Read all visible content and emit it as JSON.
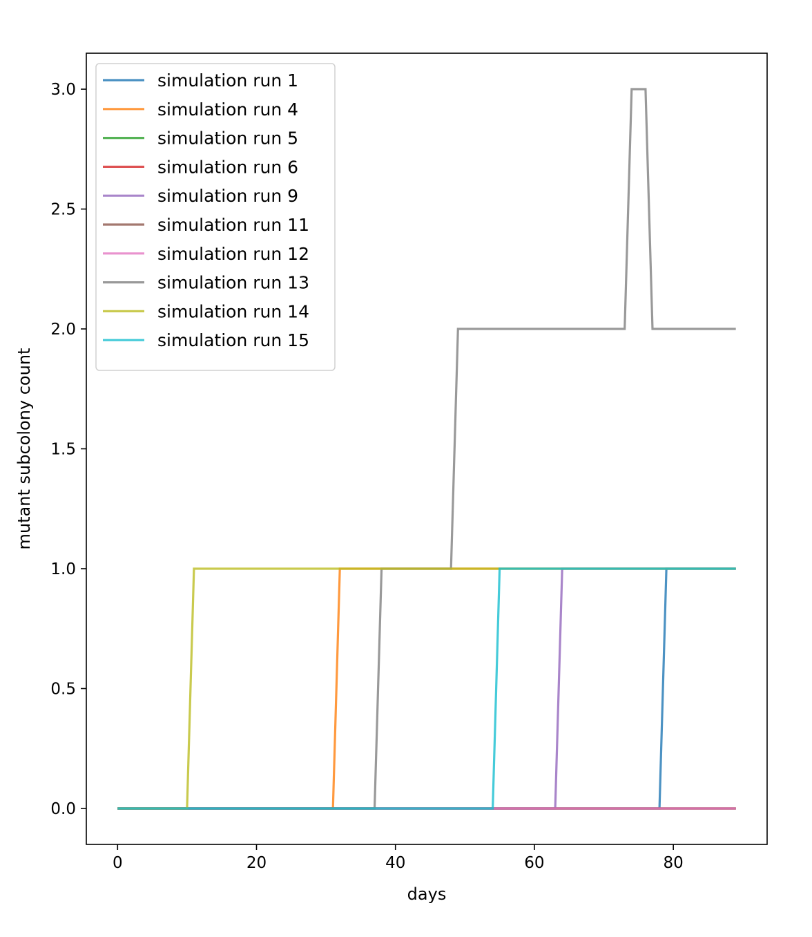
{
  "chart_data": {
    "type": "line",
    "title": "",
    "xlabel": "days",
    "ylabel": "mutant subcolony count",
    "xlim": [
      -4.5,
      93.5
    ],
    "ylim": [
      -0.15,
      3.15
    ],
    "xticks": [
      0,
      20,
      40,
      60,
      80
    ],
    "xtick_labels": [
      "0",
      "20",
      "40",
      "60",
      "80"
    ],
    "yticks": [
      0.0,
      0.5,
      1.0,
      1.5,
      2.0,
      2.5,
      3.0
    ],
    "ytick_labels": [
      "0.0",
      "0.5",
      "1.0",
      "1.5",
      "2.0",
      "2.5",
      "3.0"
    ],
    "grid": false,
    "legend_position": "top-left",
    "series": [
      {
        "name": "simulation run 1",
        "color": "#1f77b4",
        "points": [
          [
            0,
            0
          ],
          [
            78,
            0
          ],
          [
            79,
            1
          ],
          [
            89,
            1
          ]
        ]
      },
      {
        "name": "simulation run 4",
        "color": "#ff7f0e",
        "points": [
          [
            0,
            0
          ],
          [
            31,
            0
          ],
          [
            32,
            1
          ],
          [
            89,
            1
          ]
        ]
      },
      {
        "name": "simulation run 5",
        "color": "#2ca02c",
        "points": [
          [
            0,
            0
          ],
          [
            89,
            0
          ]
        ]
      },
      {
        "name": "simulation run 6",
        "color": "#d62728",
        "points": [
          [
            0,
            0
          ],
          [
            89,
            0
          ]
        ]
      },
      {
        "name": "simulation run 9",
        "color": "#9467bd",
        "points": [
          [
            0,
            0
          ],
          [
            63,
            0
          ],
          [
            64,
            1
          ],
          [
            89,
            1
          ]
        ]
      },
      {
        "name": "simulation run 11",
        "color": "#8c564b",
        "points": [
          [
            0,
            0
          ],
          [
            89,
            0
          ]
        ]
      },
      {
        "name": "simulation run 12",
        "color": "#e377c2",
        "points": [
          [
            0,
            0
          ],
          [
            89,
            0
          ]
        ]
      },
      {
        "name": "simulation run 13",
        "color": "#7f7f7f",
        "points": [
          [
            0,
            0
          ],
          [
            37,
            0
          ],
          [
            38,
            1
          ],
          [
            48,
            1
          ],
          [
            49,
            2
          ],
          [
            73,
            2
          ],
          [
            74,
            3
          ],
          [
            76,
            3
          ],
          [
            77,
            2
          ],
          [
            89,
            2
          ]
        ]
      },
      {
        "name": "simulation run 14",
        "color": "#bcbd22",
        "points": [
          [
            0,
            0
          ],
          [
            10,
            0
          ],
          [
            11,
            1
          ],
          [
            89,
            1
          ]
        ]
      },
      {
        "name": "simulation run 15",
        "color": "#17becf",
        "points": [
          [
            0,
            0
          ],
          [
            54,
            0
          ],
          [
            55,
            1
          ],
          [
            89,
            1
          ]
        ]
      }
    ]
  }
}
